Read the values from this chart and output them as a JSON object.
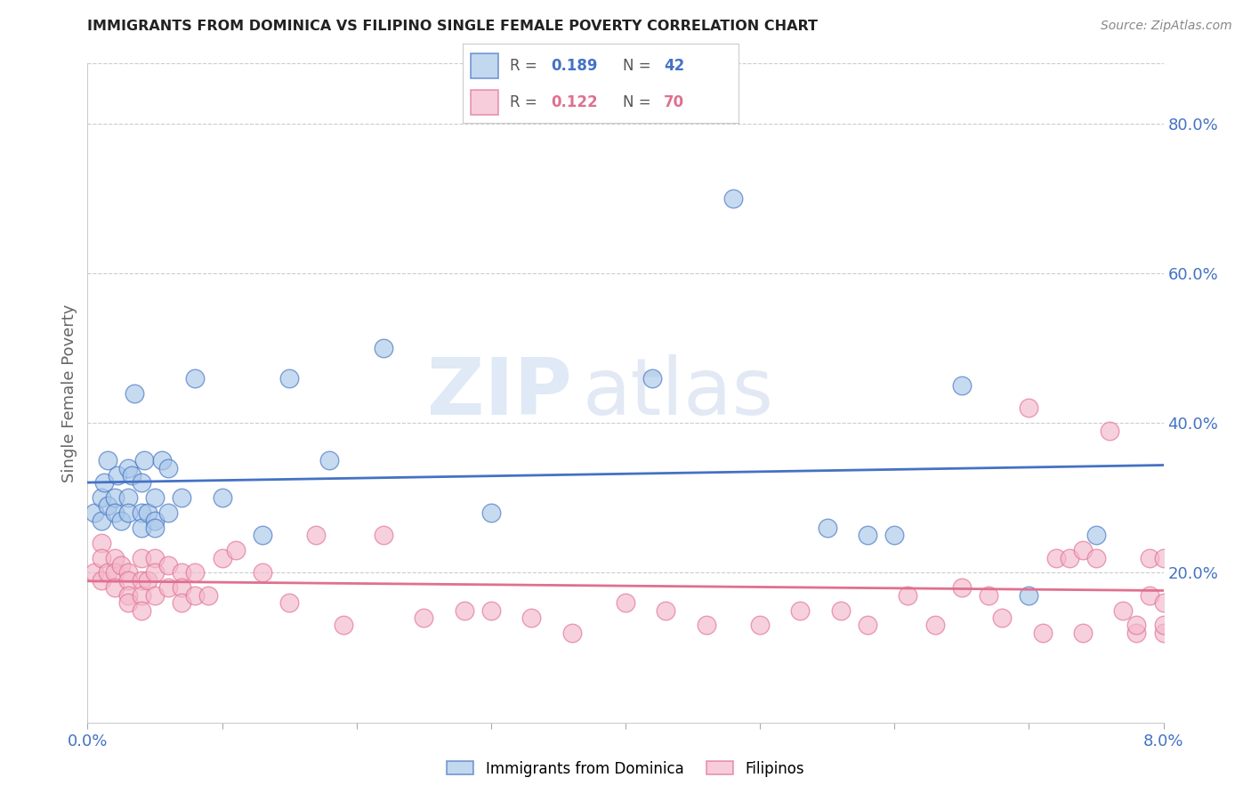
{
  "title": "IMMIGRANTS FROM DOMINICA VS FILIPINO SINGLE FEMALE POVERTY CORRELATION CHART",
  "source": "Source: ZipAtlas.com",
  "ylabel": "Single Female Poverty",
  "right_yticks": [
    "80.0%",
    "60.0%",
    "40.0%",
    "20.0%"
  ],
  "right_ytick_vals": [
    0.8,
    0.6,
    0.4,
    0.2
  ],
  "xlim": [
    0.0,
    0.08
  ],
  "ylim": [
    0.0,
    0.88
  ],
  "legend1_label": "Immigrants from Dominica",
  "legend2_label": "Filipinos",
  "r1": "0.189",
  "n1": "42",
  "r2": "0.122",
  "n2": "70",
  "color_blue": "#a8c8e8",
  "color_pink": "#f4b8cc",
  "line_blue": "#4472c4",
  "line_pink": "#e07090",
  "watermark_zip": "ZIP",
  "watermark_atlas": "atlas",
  "blue_x": [
    0.0005,
    0.001,
    0.001,
    0.0012,
    0.0015,
    0.0015,
    0.002,
    0.002,
    0.0022,
    0.0025,
    0.003,
    0.003,
    0.003,
    0.0033,
    0.0035,
    0.004,
    0.004,
    0.004,
    0.0042,
    0.0045,
    0.005,
    0.005,
    0.005,
    0.0055,
    0.006,
    0.006,
    0.007,
    0.008,
    0.01,
    0.013,
    0.015,
    0.018,
    0.022,
    0.03,
    0.042,
    0.048,
    0.055,
    0.058,
    0.06,
    0.065,
    0.07,
    0.075
  ],
  "blue_y": [
    0.28,
    0.3,
    0.27,
    0.32,
    0.29,
    0.35,
    0.3,
    0.28,
    0.33,
    0.27,
    0.34,
    0.3,
    0.28,
    0.33,
    0.44,
    0.32,
    0.28,
    0.26,
    0.35,
    0.28,
    0.3,
    0.27,
    0.26,
    0.35,
    0.34,
    0.28,
    0.3,
    0.46,
    0.3,
    0.25,
    0.46,
    0.35,
    0.5,
    0.28,
    0.46,
    0.7,
    0.26,
    0.25,
    0.25,
    0.45,
    0.17,
    0.25
  ],
  "pink_x": [
    0.0005,
    0.001,
    0.001,
    0.001,
    0.0015,
    0.002,
    0.002,
    0.002,
    0.0025,
    0.003,
    0.003,
    0.003,
    0.003,
    0.004,
    0.004,
    0.004,
    0.004,
    0.0045,
    0.005,
    0.005,
    0.005,
    0.006,
    0.006,
    0.007,
    0.007,
    0.007,
    0.008,
    0.008,
    0.009,
    0.01,
    0.011,
    0.013,
    0.015,
    0.017,
    0.019,
    0.022,
    0.025,
    0.028,
    0.03,
    0.033,
    0.036,
    0.04,
    0.043,
    0.046,
    0.05,
    0.053,
    0.056,
    0.058,
    0.061,
    0.063,
    0.065,
    0.067,
    0.068,
    0.07,
    0.071,
    0.072,
    0.073,
    0.074,
    0.074,
    0.075,
    0.076,
    0.077,
    0.078,
    0.078,
    0.079,
    0.079,
    0.08,
    0.08,
    0.08,
    0.08
  ],
  "pink_y": [
    0.2,
    0.24,
    0.22,
    0.19,
    0.2,
    0.22,
    0.2,
    0.18,
    0.21,
    0.2,
    0.19,
    0.17,
    0.16,
    0.22,
    0.19,
    0.17,
    0.15,
    0.19,
    0.22,
    0.2,
    0.17,
    0.21,
    0.18,
    0.2,
    0.18,
    0.16,
    0.2,
    0.17,
    0.17,
    0.22,
    0.23,
    0.2,
    0.16,
    0.25,
    0.13,
    0.25,
    0.14,
    0.15,
    0.15,
    0.14,
    0.12,
    0.16,
    0.15,
    0.13,
    0.13,
    0.15,
    0.15,
    0.13,
    0.17,
    0.13,
    0.18,
    0.17,
    0.14,
    0.42,
    0.12,
    0.22,
    0.22,
    0.23,
    0.12,
    0.22,
    0.39,
    0.15,
    0.12,
    0.13,
    0.22,
    0.17,
    0.16,
    0.12,
    0.13,
    0.22
  ]
}
